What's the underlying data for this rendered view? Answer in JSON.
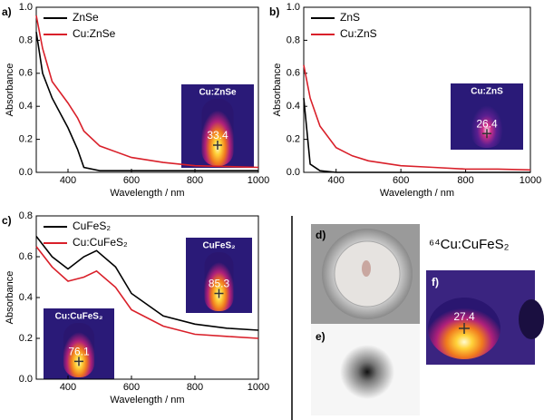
{
  "chart_data": [
    {
      "type": "line",
      "panel_label": "a)",
      "xlabel": "Wavelength / nm",
      "ylabel": "Absorbance",
      "x": [
        300,
        320,
        350,
        400,
        430,
        450,
        500,
        600,
        700,
        800,
        900,
        1000
      ],
      "series": [
        {
          "name": "ZnSe",
          "color": "#000000",
          "values": [
            0.85,
            0.6,
            0.45,
            0.27,
            0.14,
            0.03,
            0.01,
            0.01,
            0.01,
            0.01,
            0.01,
            0.01
          ]
        },
        {
          "name": "Cu:ZnSe",
          "color": "#d9202a",
          "values": [
            0.95,
            0.75,
            0.55,
            0.42,
            0.33,
            0.25,
            0.16,
            0.09,
            0.06,
            0.04,
            0.035,
            0.03
          ]
        }
      ],
      "xlim": [
        300,
        1000
      ],
      "xticks": [
        400,
        600,
        800,
        1000
      ],
      "ylim": [
        0,
        1
      ],
      "yticks": [
        {
          "value": 0,
          "label": "0.0"
        },
        0.2,
        0.4,
        0.6,
        0.8,
        {
          "value": 1,
          "label": "1.0"
        }
      ],
      "legend": "upper left",
      "insets": [
        {
          "label": "Cu:ZnSe",
          "temperature": 33.4
        }
      ]
    },
    {
      "type": "line",
      "panel_label": "b)",
      "xlabel": "Wavelength / nm",
      "ylabel": "Absorbance",
      "x": [
        300,
        320,
        350,
        400,
        430,
        450,
        500,
        600,
        700,
        800,
        900,
        1000
      ],
      "series": [
        {
          "name": "ZnS",
          "color": "#000000",
          "values": [
            0.45,
            0.05,
            0.01,
            0,
            0,
            0,
            0,
            0,
            0,
            0,
            0,
            0
          ]
        },
        {
          "name": "Cu:ZnS",
          "color": "#d9202a",
          "values": [
            0.65,
            0.45,
            0.28,
            0.15,
            0.12,
            0.1,
            0.07,
            0.04,
            0.03,
            0.02,
            0.02,
            0.015
          ]
        }
      ],
      "xlim": [
        300,
        1000
      ],
      "xticks": [
        400,
        600,
        800,
        1000
      ],
      "ylim": [
        0,
        1
      ],
      "yticks": [
        {
          "value": 0,
          "label": "0.0"
        },
        0.2,
        0.4,
        0.6,
        0.8,
        {
          "value": 1,
          "label": "1.0"
        }
      ],
      "legend": "upper left",
      "insets": [
        {
          "label": "Cu:ZnS",
          "temperature": 26.4
        }
      ]
    },
    {
      "type": "line",
      "panel_label": "c)",
      "xlabel": "Wavelength / nm",
      "ylabel": "Absorbance",
      "x": [
        300,
        350,
        400,
        450,
        490,
        550,
        600,
        700,
        800,
        900,
        1000
      ],
      "series": [
        {
          "name": "CuFeS₂",
          "color": "#000000",
          "values": [
            0.7,
            0.6,
            0.54,
            0.6,
            0.63,
            0.55,
            0.42,
            0.31,
            0.27,
            0.25,
            0.24
          ]
        },
        {
          "name": "Cu:CuFeS₂",
          "color": "#d9202a",
          "values": [
            0.65,
            0.55,
            0.48,
            0.5,
            0.53,
            0.45,
            0.34,
            0.26,
            0.22,
            0.21,
            0.2
          ]
        }
      ],
      "xlim": [
        300,
        1000
      ],
      "xticks": [
        400,
        600,
        800,
        1000
      ],
      "ylim": [
        0,
        0.8
      ],
      "yticks": [
        {
          "value": 0,
          "label": "0.0"
        },
        0.2,
        0.4,
        0.6,
        0.8
      ],
      "legend": "upper left",
      "insets": [
        {
          "label": "CuFeS₂",
          "temperature": 85.3
        },
        {
          "label": "Cu:CuFeS₂",
          "temperature": 76.1
        }
      ]
    }
  ],
  "photos": {
    "title": "⁶⁴Cu:CuFeS₂",
    "labels": [
      "d)",
      "e)",
      "f)"
    ],
    "temperature": 27.4
  }
}
